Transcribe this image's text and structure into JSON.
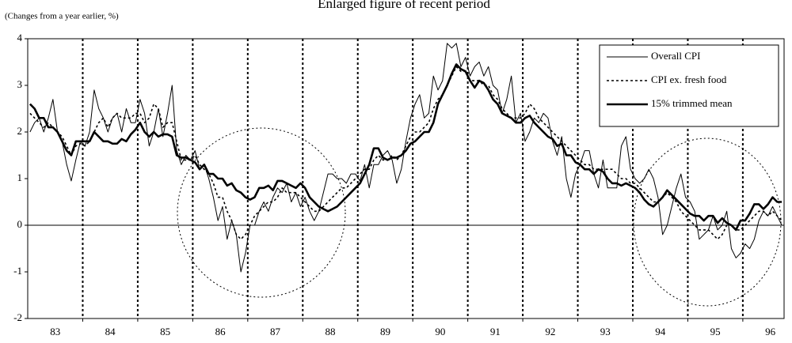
{
  "chart_data": {
    "type": "line",
    "title": "Enlarged figure of recent period",
    "y_label": "(Changes from a year earlier, %)",
    "categories": [
      null,
      null,
      null,
      null,
      null,
      null,
      "83",
      null,
      null,
      null,
      null,
      null,
      null,
      null,
      null,
      null,
      null,
      null,
      "84",
      null,
      null,
      null,
      null,
      null,
      null,
      null,
      null,
      null,
      null,
      null,
      "85",
      null,
      null,
      null,
      null,
      null,
      null,
      null,
      null,
      null,
      null,
      null,
      "86",
      null,
      null,
      null,
      null,
      null,
      null,
      null,
      null,
      null,
      null,
      null,
      "87",
      null,
      null,
      null,
      null,
      null,
      null,
      null,
      null,
      null,
      null,
      null,
      "88",
      null,
      null,
      null,
      null,
      null,
      null,
      null,
      null,
      null,
      null,
      null,
      "89",
      null,
      null,
      null,
      null,
      null,
      null,
      null,
      null,
      null,
      null,
      null,
      "90",
      null,
      null,
      null,
      null,
      null,
      null,
      null,
      null,
      null,
      null,
      null,
      "91",
      null,
      null,
      null,
      null,
      null,
      null,
      null,
      null,
      null,
      null,
      null,
      "92",
      null,
      null,
      null,
      null,
      null,
      null,
      null,
      null,
      null,
      null,
      null,
      "93",
      null,
      null,
      null,
      null,
      null,
      null,
      null,
      null,
      null,
      null,
      null,
      "94",
      null,
      null,
      null,
      null,
      null,
      null,
      null,
      null,
      null,
      null,
      null,
      "95",
      null,
      null,
      null,
      null,
      null,
      null,
      null,
      null,
      null,
      null,
      null,
      "96",
      null,
      null
    ],
    "series": [
      {
        "name": "Overall CPI",
        "color": "#000000",
        "line_style": "solid",
        "line_width": 1,
        "values": [
          2.0,
          2.2,
          2.3,
          2.0,
          2.3,
          2.7,
          2.0,
          1.8,
          1.3,
          0.95,
          1.4,
          1.8,
          1.7,
          2.0,
          2.9,
          2.5,
          2.3,
          2.0,
          2.3,
          2.4,
          2.0,
          2.5,
          2.2,
          2.2,
          2.7,
          2.4,
          1.7,
          2.0,
          2.5,
          1.9,
          2.4,
          3.0,
          1.6,
          1.3,
          1.5,
          1.4,
          1.6,
          1.2,
          1.3,
          1.0,
          0.6,
          0.1,
          0.4,
          -0.3,
          0.1,
          -0.2,
          -1.0,
          -0.6,
          0.0,
          0.0,
          0.3,
          0.5,
          0.3,
          0.6,
          0.8,
          0.7,
          0.9,
          0.5,
          0.7,
          0.4,
          0.6,
          0.3,
          0.1,
          0.3,
          0.7,
          1.1,
          1.1,
          1.0,
          1.0,
          0.9,
          1.1,
          1.1,
          0.95,
          1.3,
          0.8,
          1.3,
          1.3,
          1.5,
          1.6,
          1.4,
          0.9,
          1.2,
          1.8,
          2.3,
          2.6,
          2.8,
          2.3,
          2.4,
          3.2,
          2.9,
          3.1,
          3.9,
          3.8,
          3.9,
          3.4,
          3.6,
          3.2,
          3.4,
          3.5,
          3.2,
          3.4,
          3.0,
          2.9,
          2.4,
          2.7,
          3.2,
          2.2,
          2.4,
          1.8,
          2.0,
          2.3,
          2.2,
          2.4,
          2.3,
          1.8,
          1.5,
          1.9,
          1.0,
          0.6,
          1.1,
          1.3,
          1.6,
          1.6,
          1.1,
          0.8,
          1.4,
          0.8,
          0.8,
          0.8,
          1.7,
          1.9,
          1.2,
          1.0,
          0.9,
          1.0,
          1.2,
          1.0,
          0.6,
          -0.2,
          0.0,
          0.4,
          0.8,
          1.1,
          0.6,
          0.5,
          0.3,
          -0.3,
          -0.2,
          -0.1,
          0.2,
          -0.1,
          0.0,
          0.3,
          -0.5,
          -0.7,
          -0.6,
          -0.4,
          -0.5,
          -0.3,
          0.1,
          0.3,
          0.2,
          0.4,
          0.2,
          0.0
        ]
      },
      {
        "name": "CPI ex. fresh food",
        "color": "#000000",
        "line_style": "dotted",
        "line_width": 1.6,
        "values": [
          2.4,
          2.3,
          2.2,
          2.1,
          2.2,
          2.1,
          2.0,
          1.9,
          1.7,
          1.5,
          1.7,
          1.75,
          1.7,
          1.8,
          2.0,
          2.2,
          2.3,
          2.1,
          2.3,
          2.4,
          2.3,
          2.3,
          2.3,
          2.4,
          2.4,
          2.2,
          2.3,
          2.6,
          2.5,
          2.1,
          2.2,
          2.2,
          1.8,
          1.4,
          1.4,
          1.4,
          1.5,
          1.3,
          1.2,
          1.1,
          0.9,
          0.6,
          0.6,
          0.3,
          0.1,
          -0.2,
          -0.3,
          -0.2,
          0.0,
          0.2,
          0.3,
          0.4,
          0.5,
          0.5,
          0.6,
          0.8,
          0.7,
          0.7,
          0.7,
          0.6,
          0.5,
          0.4,
          0.3,
          0.3,
          0.4,
          0.5,
          0.6,
          0.7,
          0.8,
          0.8,
          0.9,
          1.0,
          1.1,
          1.2,
          1.2,
          1.4,
          1.5,
          1.4,
          1.4,
          1.5,
          1.4,
          1.5,
          1.7,
          1.9,
          2.0,
          2.0,
          2.1,
          2.2,
          2.5,
          2.7,
          2.8,
          3.0,
          3.2,
          3.4,
          3.3,
          3.3,
          3.1,
          3.1,
          3.1,
          3.0,
          3.0,
          2.8,
          2.7,
          2.5,
          2.4,
          2.3,
          2.3,
          2.3,
          2.4,
          2.6,
          2.5,
          2.3,
          2.2,
          2.1,
          2.0,
          1.9,
          1.8,
          1.7,
          1.6,
          1.5,
          1.4,
          1.3,
          1.3,
          1.2,
          1.2,
          1.2,
          1.2,
          1.2,
          1.1,
          1.0,
          1.0,
          0.9,
          0.9,
          0.8,
          0.7,
          0.6,
          0.5,
          0.5,
          0.6,
          0.7,
          0.6,
          0.5,
          0.3,
          0.2,
          0.1,
          0.0,
          -0.1,
          -0.1,
          -0.1,
          -0.2,
          -0.3,
          -0.2,
          0.0,
          0.0,
          -0.1,
          -0.1,
          0.0,
          0.1,
          0.2,
          0.3,
          0.3,
          0.2,
          0.3,
          0.2,
          0.1
        ]
      },
      {
        "name": "15% trimmed mean",
        "color": "#000000",
        "line_style": "solid",
        "line_width": 2.6,
        "values": [
          2.6,
          2.5,
          2.3,
          2.3,
          2.1,
          2.1,
          2.0,
          1.8,
          1.6,
          1.5,
          1.8,
          1.8,
          1.8,
          1.8,
          2.0,
          1.9,
          1.8,
          1.8,
          1.75,
          1.75,
          1.85,
          1.8,
          1.95,
          2.05,
          2.2,
          2.0,
          1.9,
          2.0,
          1.9,
          1.95,
          1.95,
          1.9,
          1.5,
          1.45,
          1.45,
          1.4,
          1.35,
          1.2,
          1.3,
          1.1,
          1.1,
          1.0,
          1.0,
          0.85,
          0.9,
          0.75,
          0.7,
          0.6,
          0.55,
          0.6,
          0.8,
          0.8,
          0.85,
          0.75,
          0.95,
          0.95,
          0.9,
          0.85,
          0.8,
          0.9,
          0.8,
          0.6,
          0.5,
          0.4,
          0.35,
          0.3,
          0.35,
          0.4,
          0.5,
          0.6,
          0.7,
          0.8,
          0.9,
          1.1,
          1.3,
          1.65,
          1.65,
          1.45,
          1.4,
          1.45,
          1.45,
          1.5,
          1.6,
          1.75,
          1.8,
          1.9,
          2.0,
          2.0,
          2.2,
          2.6,
          2.8,
          3.0,
          3.25,
          3.45,
          3.35,
          3.3,
          3.1,
          2.95,
          3.1,
          3.05,
          2.9,
          2.7,
          2.6,
          2.4,
          2.35,
          2.3,
          2.2,
          2.2,
          2.3,
          2.35,
          2.2,
          2.1,
          2.0,
          1.9,
          1.85,
          1.7,
          1.75,
          1.5,
          1.5,
          1.35,
          1.3,
          1.2,
          1.2,
          1.1,
          1.2,
          1.15,
          1.0,
          0.9,
          0.9,
          0.85,
          0.9,
          0.85,
          0.8,
          0.7,
          0.55,
          0.45,
          0.4,
          0.5,
          0.6,
          0.75,
          0.65,
          0.55,
          0.45,
          0.35,
          0.25,
          0.2,
          0.2,
          0.1,
          0.2,
          0.2,
          0.05,
          0.15,
          0.05,
          0.0,
          -0.1,
          0.1,
          0.1,
          0.25,
          0.45,
          0.45,
          0.35,
          0.45,
          0.6,
          0.5,
          0.5
        ]
      }
    ],
    "ylim": [
      -2,
      4
    ],
    "yticks": [
      -2,
      -1,
      0,
      1,
      2,
      3,
      4
    ],
    "year_separators": true,
    "legend": "upper right"
  }
}
